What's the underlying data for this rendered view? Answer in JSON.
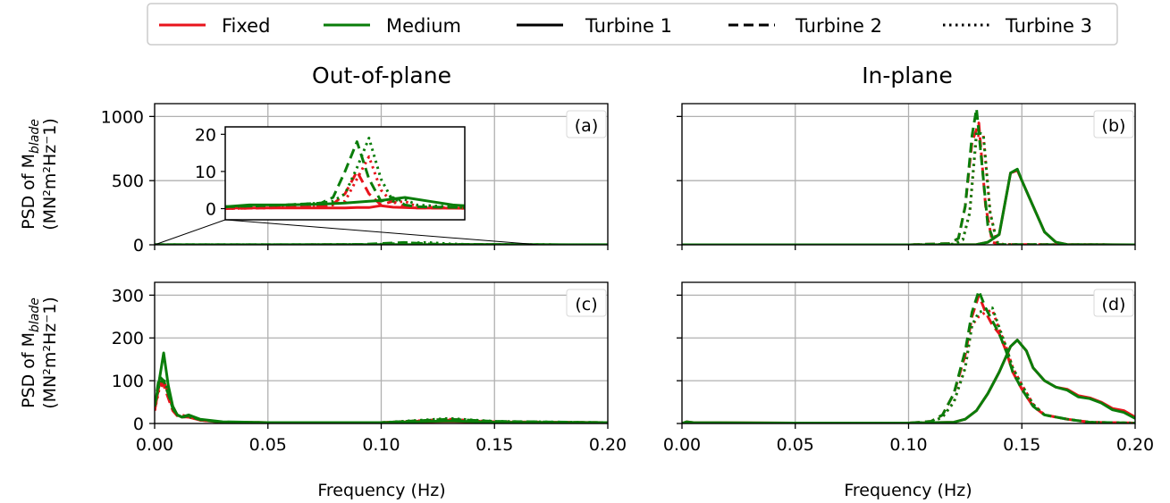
{
  "legend": {
    "items": [
      {
        "label": "Fixed",
        "color": "#e8141c",
        "style": "solid"
      },
      {
        "label": "Medium",
        "color": "#0a7d0a",
        "style": "solid"
      },
      {
        "label": "Turbine 1",
        "color": "#000000",
        "style": "solid"
      },
      {
        "label": "Turbine 2",
        "color": "#000000",
        "style": "dashed"
      },
      {
        "label": "Turbine 3",
        "color": "#000000",
        "style": "dotted"
      }
    ]
  },
  "titles": {
    "left": "Out-of-plane",
    "right": "In-plane"
  },
  "ylabel": {
    "line1": "PSD of M",
    "sub": "blade",
    "line2": "(MN²m²Hz⁻1)"
  },
  "xlabel": "Frequency (Hz)",
  "colors": {
    "fixed": "#e8141c",
    "medium": "#0a7d0a",
    "grid": "#b0b0b0"
  },
  "chart_data": [
    {
      "type": "line",
      "panel": "(a)",
      "title": "Out-of-plane",
      "xlim": [
        0,
        0.2
      ],
      "ylim": [
        0,
        1100
      ],
      "xticks": [
        "0.00",
        "0.05",
        "0.10",
        "0.15",
        "0.20"
      ],
      "yticks": [
        "0",
        "500",
        "1000"
      ],
      "show_xticklabels": false,
      "show_ylabel": true,
      "grid": true,
      "inset": {
        "xlim": [
          0,
          0.2
        ],
        "ylim": [
          -3,
          22
        ],
        "yticks": [
          "0",
          "10",
          "20"
        ],
        "zoom_box_x": [
          0,
          0.17
        ]
      },
      "series": [
        {
          "group": "Fixed",
          "turbine": "Turbine 1",
          "x": [
            0,
            0.01,
            0.05,
            0.09,
            0.1,
            0.11,
            0.12,
            0.13,
            0.14,
            0.16,
            0.2
          ],
          "y": [
            0,
            0.2,
            0.2,
            0.2,
            0.2,
            0.3,
            0.3,
            0.8,
            0.4,
            0.2,
            0.1
          ]
        },
        {
          "group": "Fixed",
          "turbine": "Turbine 2",
          "x": [
            0,
            0.05,
            0.08,
            0.09,
            0.1,
            0.11,
            0.12,
            0.13,
            0.14,
            0.15,
            0.16,
            0.2
          ],
          "y": [
            0,
            0.3,
            0.5,
            1.2,
            4,
            10,
            4,
            1,
            2,
            0.5,
            0.2,
            0.1
          ]
        },
        {
          "group": "Fixed",
          "turbine": "Turbine 3",
          "x": [
            0,
            0.05,
            0.08,
            0.09,
            0.1,
            0.11,
            0.12,
            0.13,
            0.14,
            0.15,
            0.16,
            0.2
          ],
          "y": [
            0,
            0.3,
            0.5,
            1.0,
            2,
            8,
            14,
            5,
            1.5,
            2,
            0.5,
            0.1
          ]
        },
        {
          "group": "Medium",
          "turbine": "Turbine 1",
          "x": [
            0,
            0.02,
            0.05,
            0.08,
            0.1,
            0.12,
            0.13,
            0.15,
            0.17,
            0.19,
            0.2
          ],
          "y": [
            0.5,
            1,
            1,
            1.2,
            1.5,
            2,
            2.2,
            3,
            2,
            1,
            0.8
          ]
        },
        {
          "group": "Medium",
          "turbine": "Turbine 2",
          "x": [
            0,
            0.05,
            0.08,
            0.09,
            0.1,
            0.11,
            0.12,
            0.13,
            0.14,
            0.15,
            0.16,
            0.2
          ],
          "y": [
            0.5,
            1,
            1.5,
            3,
            10,
            18,
            8,
            2,
            3,
            1,
            0.5,
            0.3
          ]
        },
        {
          "group": "Medium",
          "turbine": "Turbine 3",
          "x": [
            0,
            0.05,
            0.08,
            0.09,
            0.1,
            0.11,
            0.12,
            0.13,
            0.14,
            0.15,
            0.16,
            0.2
          ],
          "y": [
            0.5,
            1,
            1.5,
            2,
            4,
            11,
            19,
            8,
            2,
            2.5,
            1,
            0.3
          ]
        }
      ]
    },
    {
      "type": "line",
      "panel": "(b)",
      "title": "In-plane",
      "xlim": [
        0,
        0.2
      ],
      "ylim": [
        0,
        1100
      ],
      "xticks": [
        "0.00",
        "0.05",
        "0.10",
        "0.15",
        "0.20"
      ],
      "yticks": [
        "0",
        "500",
        "1000"
      ],
      "show_xticklabels": false,
      "show_ylabel": false,
      "grid": true,
      "series": [
        {
          "group": "Fixed",
          "turbine": "Turbine 1",
          "x": [
            0,
            0.1,
            0.13,
            0.135,
            0.14,
            0.145,
            0.148,
            0.15,
            0.155,
            0.16,
            0.165,
            0.17,
            0.2
          ],
          "y": [
            0,
            0,
            2,
            20,
            80,
            560,
            580,
            500,
            300,
            100,
            20,
            2,
            0
          ]
        },
        {
          "group": "Fixed",
          "turbine": "Turbine 2",
          "x": [
            0,
            0.1,
            0.118,
            0.122,
            0.125,
            0.128,
            0.131,
            0.134,
            0.137,
            0.14,
            0.2
          ],
          "y": [
            0,
            0,
            10,
            50,
            300,
            800,
            950,
            300,
            20,
            2,
            0
          ]
        },
        {
          "group": "Fixed",
          "turbine": "Turbine 3",
          "x": [
            0,
            0.1,
            0.12,
            0.124,
            0.127,
            0.13,
            0.133,
            0.136,
            0.139,
            0.142,
            0.2
          ],
          "y": [
            0,
            0,
            5,
            40,
            250,
            850,
            850,
            250,
            20,
            2,
            0
          ]
        },
        {
          "group": "Medium",
          "turbine": "Turbine 1",
          "x": [
            0,
            0.1,
            0.13,
            0.135,
            0.14,
            0.145,
            0.148,
            0.15,
            0.155,
            0.16,
            0.165,
            0.17,
            0.2
          ],
          "y": [
            0,
            0,
            2,
            20,
            80,
            560,
            590,
            500,
            300,
            100,
            20,
            2,
            0
          ]
        },
        {
          "group": "Medium",
          "turbine": "Turbine 2",
          "x": [
            0,
            0.1,
            0.118,
            0.122,
            0.125,
            0.128,
            0.13,
            0.132,
            0.135,
            0.138,
            0.14,
            0.2
          ],
          "y": [
            0,
            0,
            10,
            50,
            300,
            850,
            1060,
            700,
            150,
            20,
            2,
            0
          ]
        },
        {
          "group": "Medium",
          "turbine": "Turbine 3",
          "x": [
            0,
            0.1,
            0.12,
            0.124,
            0.127,
            0.13,
            0.133,
            0.136,
            0.139,
            0.142,
            0.2
          ],
          "y": [
            0,
            0,
            5,
            40,
            250,
            880,
            860,
            250,
            20,
            2,
            0
          ]
        }
      ]
    },
    {
      "type": "line",
      "panel": "(c)",
      "xlim": [
        0,
        0.2
      ],
      "ylim": [
        0,
        330
      ],
      "xticks": [
        "0.00",
        "0.05",
        "0.10",
        "0.15",
        "0.20"
      ],
      "yticks": [
        "0",
        "100",
        "200",
        "300"
      ],
      "show_xticklabels": true,
      "show_ylabel": true,
      "grid": true,
      "series": [
        {
          "group": "Fixed",
          "turbine": "Turbine 1",
          "x": [
            0,
            0.002,
            0.004,
            0.006,
            0.008,
            0.01,
            0.012,
            0.015,
            0.02,
            0.03,
            0.05,
            0.1,
            0.13,
            0.15,
            0.2
          ],
          "y": [
            30,
            90,
            100,
            70,
            40,
            20,
            15,
            15,
            8,
            3,
            2,
            2,
            5,
            3,
            2
          ]
        },
        {
          "group": "Fixed",
          "turbine": "Turbine 2",
          "x": [
            0,
            0.002,
            0.004,
            0.006,
            0.008,
            0.01,
            0.012,
            0.015,
            0.02,
            0.03,
            0.05,
            0.1,
            0.13,
            0.15,
            0.2
          ],
          "y": [
            30,
            100,
            90,
            60,
            30,
            18,
            20,
            15,
            8,
            3,
            2,
            2,
            8,
            4,
            2
          ]
        },
        {
          "group": "Fixed",
          "turbine": "Turbine 3",
          "x": [
            0,
            0.002,
            0.004,
            0.006,
            0.008,
            0.01,
            0.012,
            0.015,
            0.02,
            0.03,
            0.05,
            0.1,
            0.13,
            0.15,
            0.2
          ],
          "y": [
            30,
            80,
            95,
            70,
            35,
            20,
            15,
            15,
            8,
            3,
            2,
            2,
            10,
            4,
            2
          ]
        },
        {
          "group": "Medium",
          "turbine": "Turbine 1",
          "x": [
            0,
            0.002,
            0.004,
            0.006,
            0.008,
            0.01,
            0.012,
            0.015,
            0.02,
            0.03,
            0.05,
            0.1,
            0.13,
            0.15,
            0.2
          ],
          "y": [
            40,
            100,
            165,
            90,
            40,
            20,
            15,
            20,
            10,
            4,
            2,
            2,
            6,
            3,
            2
          ]
        },
        {
          "group": "Medium",
          "turbine": "Turbine 2",
          "x": [
            0,
            0.002,
            0.004,
            0.006,
            0.008,
            0.01,
            0.012,
            0.015,
            0.02,
            0.03,
            0.05,
            0.1,
            0.13,
            0.15,
            0.2
          ],
          "y": [
            40,
            110,
            100,
            70,
            35,
            20,
            15,
            18,
            9,
            3,
            2,
            2,
            10,
            5,
            2
          ]
        },
        {
          "group": "Medium",
          "turbine": "Turbine 3",
          "x": [
            0,
            0.002,
            0.004,
            0.006,
            0.008,
            0.01,
            0.012,
            0.015,
            0.02,
            0.03,
            0.05,
            0.1,
            0.13,
            0.15,
            0.2
          ],
          "y": [
            40,
            90,
            105,
            75,
            35,
            20,
            15,
            16,
            9,
            3,
            2,
            2,
            12,
            5,
            2
          ]
        }
      ]
    },
    {
      "type": "line",
      "panel": "(d)",
      "xlim": [
        0,
        0.2
      ],
      "ylim": [
        0,
        330
      ],
      "xticks": [
        "0.00",
        "0.05",
        "0.10",
        "0.15",
        "0.20"
      ],
      "yticks": [
        "0",
        "100",
        "200",
        "300"
      ],
      "show_xticklabels": true,
      "show_ylabel": false,
      "grid": true,
      "series": [
        {
          "group": "Fixed",
          "turbine": "Turbine 1",
          "x": [
            0,
            0.002,
            0.005,
            0.05,
            0.1,
            0.12,
            0.125,
            0.13,
            0.135,
            0.14,
            0.145,
            0.148,
            0.152,
            0.155,
            0.16,
            0.165,
            0.17,
            0.175,
            0.18,
            0.185,
            0.19,
            0.195,
            0.2
          ],
          "y": [
            0,
            4,
            2,
            1,
            1,
            3,
            10,
            30,
            70,
            120,
            180,
            195,
            170,
            130,
            100,
            85,
            80,
            65,
            60,
            50,
            35,
            30,
            15
          ]
        },
        {
          "group": "Fixed",
          "turbine": "Turbine 2",
          "x": [
            0,
            0.05,
            0.1,
            0.11,
            0.115,
            0.12,
            0.125,
            0.128,
            0.131,
            0.134,
            0.137,
            0.14,
            0.143,
            0.146,
            0.15,
            0.155,
            0.16,
            0.17,
            0.18,
            0.2
          ],
          "y": [
            0,
            1,
            1,
            5,
            20,
            70,
            160,
            250,
            300,
            260,
            230,
            210,
            170,
            120,
            80,
            40,
            20,
            10,
            3,
            1
          ]
        },
        {
          "group": "Fixed",
          "turbine": "Turbine 3",
          "x": [
            0,
            0.05,
            0.1,
            0.11,
            0.115,
            0.12,
            0.125,
            0.128,
            0.131,
            0.134,
            0.137,
            0.14,
            0.143,
            0.146,
            0.15,
            0.155,
            0.16,
            0.17,
            0.18,
            0.2
          ],
          "y": [
            0,
            1,
            1,
            3,
            15,
            50,
            130,
            230,
            250,
            260,
            265,
            220,
            180,
            130,
            90,
            45,
            20,
            10,
            3,
            1
          ]
        },
        {
          "group": "Medium",
          "turbine": "Turbine 1",
          "x": [
            0,
            0.002,
            0.005,
            0.05,
            0.1,
            0.12,
            0.125,
            0.13,
            0.135,
            0.14,
            0.145,
            0.148,
            0.152,
            0.155,
            0.16,
            0.165,
            0.17,
            0.175,
            0.18,
            0.185,
            0.19,
            0.195,
            0.2
          ],
          "y": [
            0,
            4,
            2,
            1,
            1,
            3,
            10,
            30,
            70,
            120,
            180,
            195,
            170,
            130,
            100,
            85,
            78,
            62,
            58,
            48,
            32,
            26,
            12
          ]
        },
        {
          "group": "Medium",
          "turbine": "Turbine 2",
          "x": [
            0,
            0.05,
            0.1,
            0.11,
            0.115,
            0.12,
            0.125,
            0.128,
            0.131,
            0.134,
            0.137,
            0.14,
            0.143,
            0.146,
            0.15,
            0.155,
            0.16,
            0.17,
            0.18,
            0.2
          ],
          "y": [
            0,
            1,
            1,
            5,
            20,
            70,
            170,
            260,
            310,
            270,
            240,
            210,
            170,
            120,
            80,
            40,
            20,
            10,
            3,
            1
          ]
        },
        {
          "group": "Medium",
          "turbine": "Turbine 3",
          "x": [
            0,
            0.05,
            0.1,
            0.11,
            0.115,
            0.12,
            0.125,
            0.128,
            0.131,
            0.134,
            0.137,
            0.14,
            0.143,
            0.146,
            0.15,
            0.155,
            0.16,
            0.17,
            0.18,
            0.2
          ],
          "y": [
            0,
            1,
            1,
            3,
            15,
            50,
            130,
            230,
            260,
            265,
            270,
            225,
            180,
            130,
            90,
            45,
            20,
            10,
            3,
            1
          ]
        }
      ]
    }
  ]
}
